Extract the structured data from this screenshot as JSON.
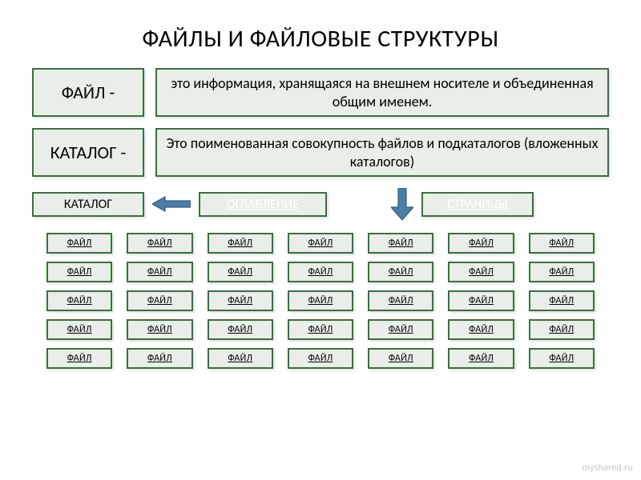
{
  "colors": {
    "border": "#3a6f3f",
    "box_fill": "#e9eee8",
    "arrow_fill": "#4b7ea8",
    "arrow_stroke": "#2f5c82",
    "background": "#ffffff",
    "title_color": "#000000",
    "nav_header_text": "#ffffff",
    "corner_link": "#c7c9cb"
  },
  "title": "ФАЙЛЫ И ФАЙЛОВЫЕ СТРУКТУРЫ",
  "def1": {
    "term": "ФАЙЛ -",
    "desc": "это информация, хранящаяся на внешнем носителе и объединенная общим именем."
  },
  "def2": {
    "term": "КАТАЛОГ -",
    "desc": "Это поименованная совокупность файлов и подкаталогов (вложенных каталогов)"
  },
  "nav": {
    "catalog": "КАТАЛОГ",
    "contents": "ОГЛАВЛЕНИЕ",
    "pages": "СТРАНИЦЫ"
  },
  "file_label": "ФАЙЛ",
  "grid": {
    "rows": 5,
    "cols": 7
  },
  "corner": "myshared.ru",
  "fonts": {
    "title_size": 30,
    "term_size": 22,
    "desc_size": 18,
    "nav_size": 16,
    "file_size": 12
  }
}
